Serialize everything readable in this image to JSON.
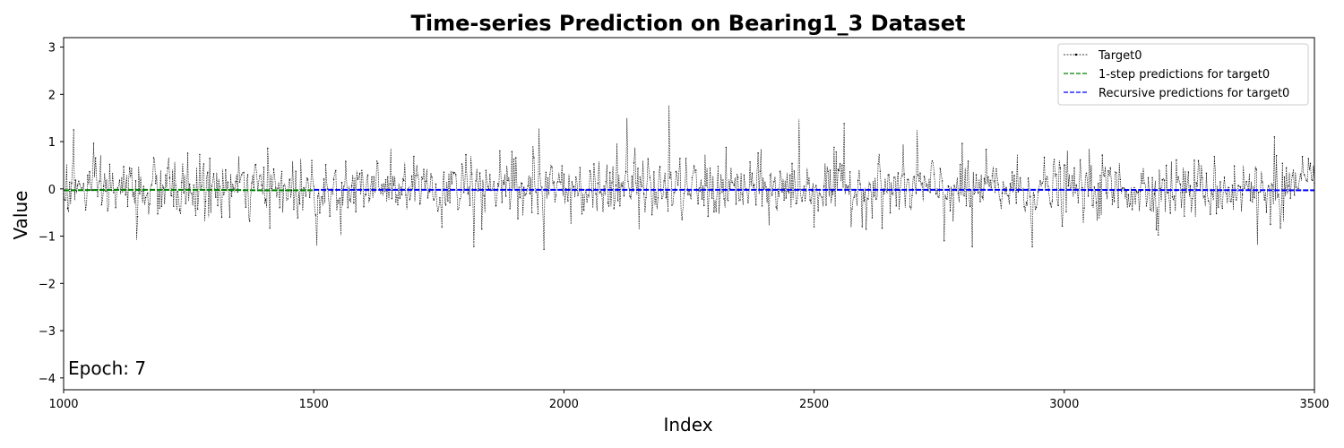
{
  "chart_data": {
    "type": "line",
    "title": "Time-series Prediction on Bearing1_3 Dataset",
    "xlabel": "Index",
    "ylabel": "Value",
    "xlim": [
      1000,
      3500
    ],
    "ylim": [
      -4.25,
      3.2
    ],
    "xticks": [
      1000,
      1500,
      2000,
      2500,
      3000,
      3500
    ],
    "yticks": [
      -4,
      -3,
      -2,
      -1,
      0,
      1,
      2,
      3
    ],
    "xtick_labels": [
      "1000",
      "1500",
      "2000",
      "2500",
      "3000",
      "3500"
    ],
    "ytick_labels": [
      "−4",
      "−3",
      "−2",
      "−1",
      "0",
      "1",
      "2",
      "3"
    ],
    "grid": false,
    "legend_position": "top-right",
    "annotation": "Epoch: 7",
    "series": [
      {
        "name": "Target0",
        "color": "#000000",
        "style": "dotted line with point markers",
        "x_range": [
          1000,
          3500
        ],
        "description_values": {
          "mean": 0.0,
          "typical_amplitude": 0.45,
          "notable_peaks": [
            [
              1020,
              1.25
            ],
            [
              1950,
              1.28
            ],
            [
              2125,
              1.5
            ],
            [
              2210,
              1.77
            ],
            [
              2470,
              1.48
            ],
            [
              2560,
              1.38
            ],
            [
              2705,
              1.25
            ],
            [
              3420,
              1.1
            ]
          ],
          "notable_troughs": [
            [
              1145,
              -1.08
            ],
            [
              1505,
              -1.2
            ],
            [
              1820,
              -1.22
            ],
            [
              1960,
              -1.28
            ],
            [
              2760,
              -1.1
            ],
            [
              2815,
              -1.22
            ],
            [
              2935,
              -1.22
            ],
            [
              3385,
              -1.18
            ]
          ]
        }
      },
      {
        "name": "1-step predictions for target0",
        "color": "#008000",
        "style": "dashed",
        "x": [
          1000,
          1100,
          1200,
          1300,
          1400,
          1500
        ],
        "y": [
          -0.03,
          -0.02,
          -0.02,
          -0.02,
          -0.03,
          -0.03
        ]
      },
      {
        "name": "Recursive predictions for target0",
        "color": "#0000ff",
        "style": "dashed",
        "x": [
          1500,
          2000,
          2500,
          3000,
          3500
        ],
        "y": [
          -0.02,
          -0.02,
          -0.02,
          -0.02,
          -0.03
        ]
      }
    ]
  }
}
